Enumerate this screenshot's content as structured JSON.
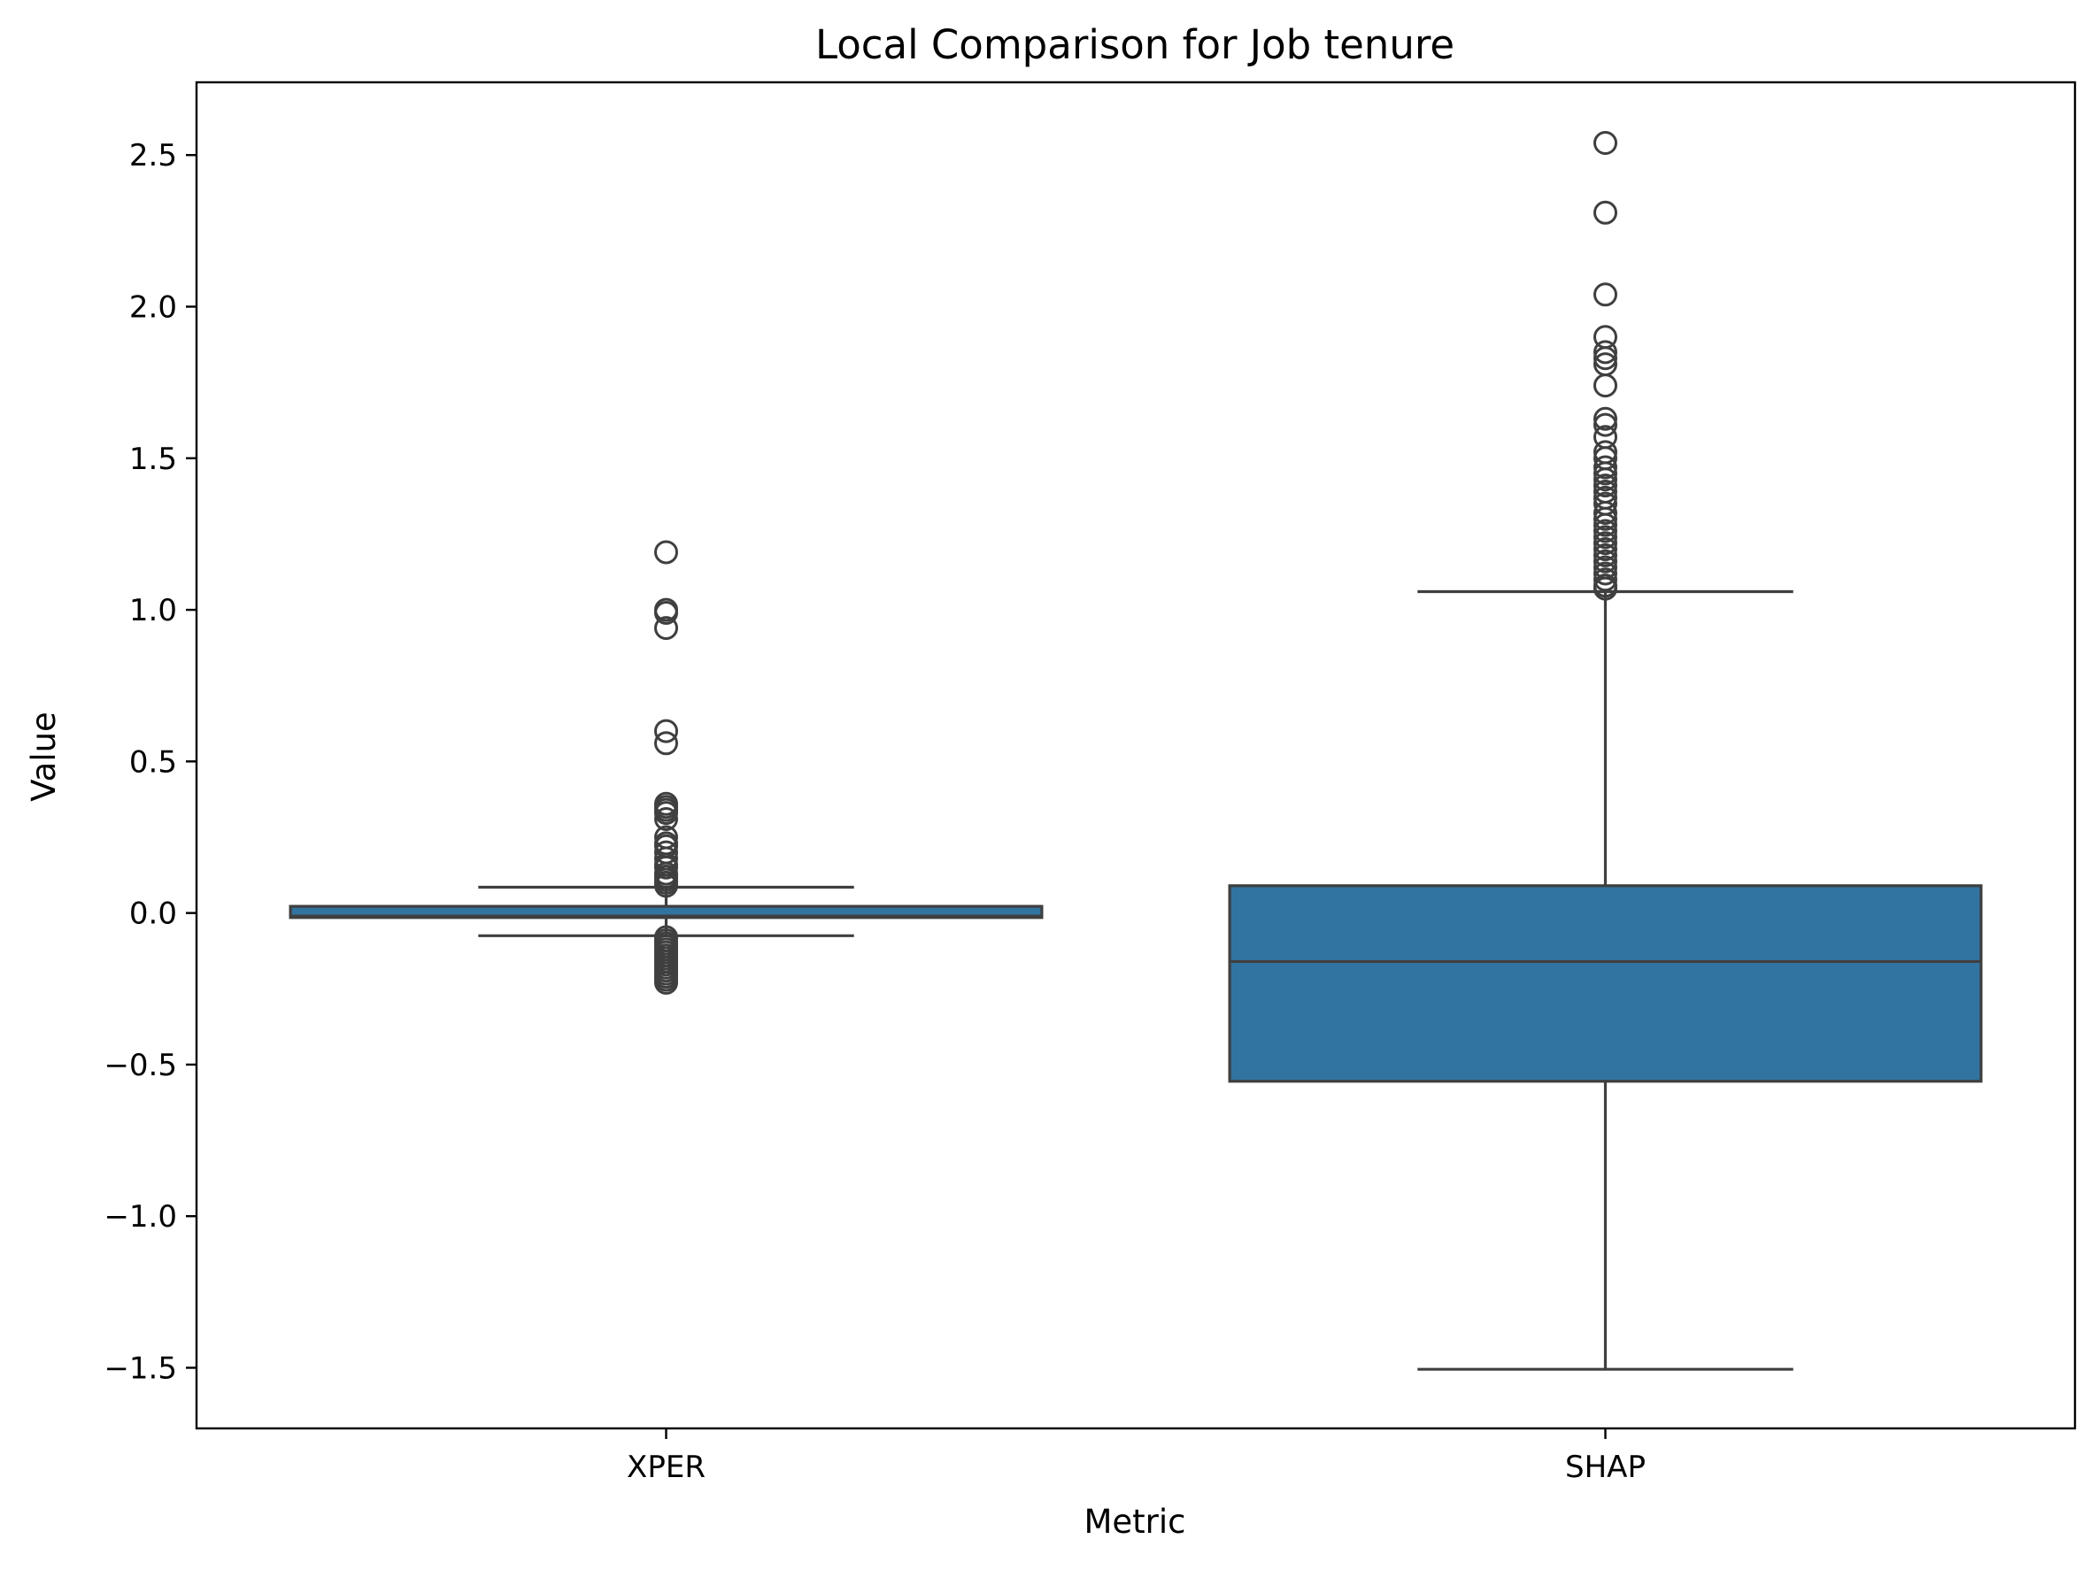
{
  "chart_data": {
    "type": "box",
    "title": "Local Comparison for Job tenure",
    "xlabel": "Metric",
    "ylabel": "Value",
    "ylim": [
      -1.7,
      2.74
    ],
    "yticks": [
      -1.5,
      -1.0,
      -0.5,
      0.0,
      0.5,
      1.0,
      1.5,
      2.0,
      2.5
    ],
    "ytick_labels": [
      "−1.5",
      "−1.0",
      "−0.5",
      "0.0",
      "0.5",
      "1.0",
      "1.5",
      "2.0",
      "2.5"
    ],
    "categories": [
      "XPER",
      "SHAP"
    ],
    "box_color": "#3274a1",
    "line_color": "#3f3f3f",
    "boxes": [
      {
        "category": "XPER",
        "q1": -0.015,
        "median": -0.01,
        "q3": 0.022,
        "whisker_low": -0.075,
        "whisker_high": 0.085,
        "outliers": [
          1.19,
          1.0,
          0.99,
          0.94,
          0.6,
          0.56,
          0.36,
          0.35,
          0.34,
          0.33,
          0.31,
          0.25,
          0.23,
          0.22,
          0.2,
          0.18,
          0.16,
          0.15,
          0.13,
          0.12,
          0.11,
          0.1,
          0.09,
          -0.08,
          -0.09,
          -0.1,
          -0.11,
          -0.12,
          -0.13,
          -0.14,
          -0.15,
          -0.16,
          -0.17,
          -0.18,
          -0.19,
          -0.2,
          -0.21,
          -0.22,
          -0.23
        ]
      },
      {
        "category": "SHAP",
        "q1": -0.555,
        "median": -0.16,
        "q3": 0.09,
        "whisker_low": -1.505,
        "whisker_high": 1.06,
        "outliers": [
          2.54,
          2.31,
          2.04,
          1.9,
          1.85,
          1.83,
          1.81,
          1.74,
          1.63,
          1.61,
          1.57,
          1.52,
          1.5,
          1.47,
          1.45,
          1.43,
          1.41,
          1.39,
          1.37,
          1.35,
          1.32,
          1.3,
          1.28,
          1.26,
          1.24,
          1.22,
          1.2,
          1.18,
          1.16,
          1.14,
          1.12,
          1.1,
          1.08,
          1.07
        ]
      }
    ],
    "grid": false,
    "legend": "none"
  }
}
